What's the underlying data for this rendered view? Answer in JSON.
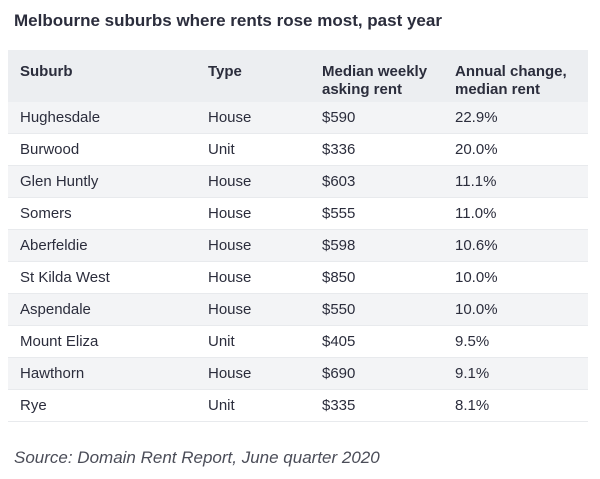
{
  "colors": {
    "text": "#2b2d3c",
    "header_bg": "#eceef1",
    "stripe_bg": "#f3f4f6",
    "source_text": "#4b4d58"
  },
  "chart_data": {
    "type": "table",
    "title": "Melbourne suburbs where rents rose most, past year",
    "columns": [
      "Suburb",
      "Type",
      "Median weekly asking rent",
      "Annual change, median rent"
    ],
    "rows": [
      [
        "Hughesdale",
        "House",
        "$590",
        "22.9%"
      ],
      [
        "Burwood",
        "Unit",
        "$336",
        "20.0%"
      ],
      [
        "Glen Huntly",
        "House",
        "$603",
        "11.1%"
      ],
      [
        "Somers",
        "House",
        "$555",
        "11.0%"
      ],
      [
        "Aberfeldie",
        "House",
        "$598",
        "10.6%"
      ],
      [
        "St Kilda West",
        "House",
        "$850",
        "10.0%"
      ],
      [
        "Aspendale",
        "House",
        "$550",
        "10.0%"
      ],
      [
        "Mount Eliza",
        "Unit",
        "$405",
        "9.5%"
      ],
      [
        "Hawthorn",
        "House",
        "$690",
        "9.1%"
      ],
      [
        "Rye",
        "Unit",
        "$335",
        "8.1%"
      ]
    ],
    "source": "Source: Domain Rent Report, June quarter 2020"
  }
}
